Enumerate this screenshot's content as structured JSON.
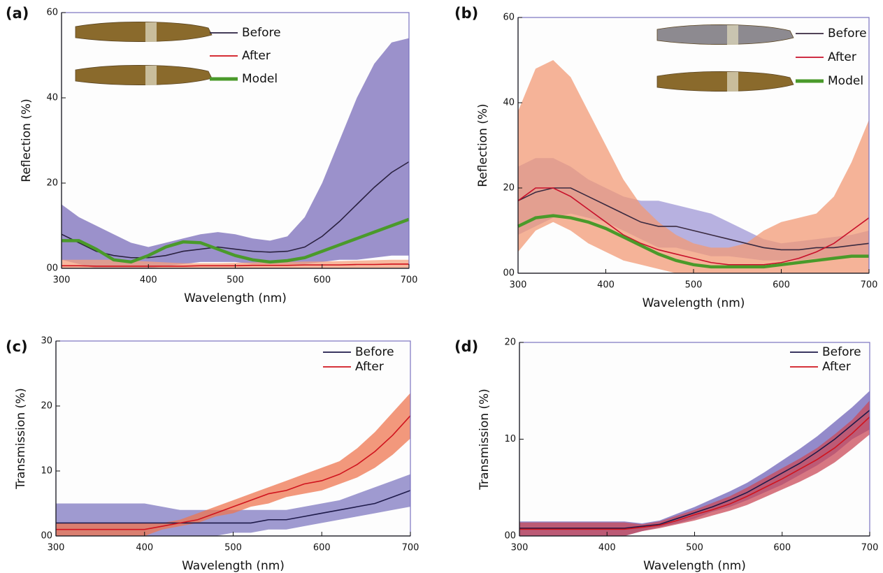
{
  "chart_data": [
    {
      "type": "line",
      "panel_label": "(a)",
      "y_label": "Reflection (%)",
      "x_label": "Wavelength (nm)",
      "x": [
        300,
        320,
        340,
        360,
        380,
        400,
        420,
        440,
        460,
        480,
        500,
        520,
        540,
        560,
        580,
        600,
        620,
        640,
        660,
        680,
        700
      ],
      "xlim": [
        300,
        700
      ],
      "xticks": [
        300,
        400,
        500,
        600,
        700
      ],
      "ylim": [
        0,
        60
      ],
      "yticks": [
        {
          "value": 0,
          "label": "00"
        },
        20,
        40,
        60
      ],
      "series": [
        {
          "name": "Before",
          "color": "#2a2140",
          "band_color": "#7a6cba",
          "values": [
            8,
            6,
            4,
            3,
            2.5,
            2.5,
            3,
            4,
            4.5,
            5,
            4.5,
            4,
            3.8,
            4,
            5,
            7.5,
            11,
            15,
            19,
            22.5,
            25
          ],
          "upper": [
            15,
            12,
            10,
            8,
            6,
            5,
            6,
            7,
            8,
            8.5,
            8,
            7,
            6.5,
            7.5,
            12,
            20,
            30,
            40,
            48,
            53,
            54
          ],
          "lower": [
            2,
            1,
            0,
            0,
            0,
            0,
            0.5,
            1,
            1.5,
            1.5,
            1.5,
            1,
            1,
            1,
            1,
            1.5,
            2,
            2,
            2.5,
            3,
            3
          ]
        },
        {
          "name": "After",
          "color": "#d0101a",
          "band_color": "#f4a07e",
          "values": [
            0.6,
            0.6,
            0.5,
            0.5,
            0.5,
            0.5,
            0.5,
            0.5,
            0.6,
            0.6,
            0.6,
            0.7,
            0.7,
            0.7,
            0.8,
            0.8,
            0.8,
            0.9,
            0.9,
            1,
            1
          ],
          "upper": [
            2,
            2,
            2,
            2,
            1.8,
            1.6,
            1.4,
            1.2,
            1.2,
            1.2,
            1.3,
            1.4,
            1.5,
            1.5,
            1.6,
            1.6,
            1.7,
            1.8,
            1.9,
            2,
            2
          ],
          "lower": [
            0,
            0,
            0,
            0,
            0,
            0,
            0,
            0,
            0,
            0,
            0,
            0,
            0,
            0,
            0,
            0,
            0,
            0,
            0,
            0,
            0
          ]
        },
        {
          "name": "Model",
          "color": "#4a9a2a",
          "values": [
            6.5,
            6.5,
            4.5,
            2,
            1.5,
            3,
            5,
            6.2,
            6,
            4.5,
            3,
            2,
            1.5,
            1.8,
            2.5,
            4,
            5.5,
            7,
            8.5,
            10,
            11.5
          ]
        }
      ]
    },
    {
      "type": "line",
      "panel_label": "(b)",
      "y_label": "Reflection (%)",
      "x_label": "Wavelength (nm)",
      "x": [
        300,
        320,
        340,
        360,
        380,
        400,
        420,
        440,
        460,
        480,
        500,
        520,
        540,
        560,
        580,
        600,
        620,
        640,
        660,
        680,
        700
      ],
      "xlim": [
        300,
        700
      ],
      "xticks": [
        300,
        400,
        500,
        600,
        700
      ],
      "ylim": [
        0,
        60
      ],
      "yticks": [
        {
          "value": 0,
          "label": "00"
        },
        20,
        40,
        60
      ],
      "series": [
        {
          "name": "Before",
          "color": "#3a2a40",
          "band_color": "#9f97d6",
          "values": [
            17,
            19,
            20,
            20,
            18,
            16,
            14,
            12,
            11,
            11,
            10,
            9,
            8,
            7,
            6,
            5.5,
            5.5,
            6,
            6,
            6.5,
            7
          ],
          "upper": [
            25,
            27,
            27,
            25,
            22,
            20,
            18,
            17,
            17,
            16,
            15,
            14,
            12,
            10,
            8,
            7,
            7.5,
            8,
            8.5,
            9,
            10
          ],
          "lower": [
            9,
            11,
            13,
            14,
            13,
            12,
            10,
            8,
            6,
            6,
            5,
            4,
            4,
            3.5,
            3,
            3,
            3,
            3.5,
            3.5,
            4,
            4
          ]
        },
        {
          "name": "After",
          "color": "#c8102a",
          "band_color": "#f29a75",
          "values": [
            17,
            20,
            20,
            18,
            15,
            12,
            9,
            7,
            5.5,
            4.5,
            3.5,
            2.5,
            2,
            2,
            2,
            2.5,
            3.5,
            5,
            7,
            10,
            13
          ],
          "upper": [
            38,
            48,
            50,
            46,
            38,
            30,
            22,
            16,
            12,
            9,
            7,
            6,
            6,
            7,
            10,
            12,
            13,
            14,
            18,
            26,
            36
          ],
          "lower": [
            5,
            10,
            12,
            10,
            7,
            5,
            3,
            2,
            1,
            0,
            0,
            0,
            0,
            0,
            0,
            0,
            0,
            0,
            0,
            0,
            0
          ]
        },
        {
          "name": "Model",
          "color": "#4a9a2a",
          "values": [
            11,
            13,
            13.5,
            13,
            12,
            10.5,
            8.5,
            6.5,
            4.5,
            3,
            2,
            1.5,
            1.5,
            1.5,
            1.5,
            2,
            2.5,
            3,
            3.5,
            4,
            4
          ]
        }
      ]
    },
    {
      "type": "line",
      "panel_label": "(c)",
      "y_label": "Transmission (%)",
      "x_label": "Wavelength (nm)",
      "x": [
        300,
        320,
        340,
        360,
        380,
        400,
        420,
        440,
        460,
        480,
        500,
        520,
        540,
        560,
        580,
        600,
        620,
        640,
        660,
        680,
        700
      ],
      "xlim": [
        300,
        700
      ],
      "xticks": [
        300,
        400,
        500,
        600,
        700
      ],
      "ylim": [
        0,
        30
      ],
      "yticks": [
        {
          "value": 0,
          "label": "00"
        },
        10,
        20,
        30
      ],
      "series": [
        {
          "name": "Before",
          "color": "#1e1a4a",
          "band_color": "#7f78c0",
          "values": [
            2,
            2,
            2,
            2,
            2,
            2,
            2,
            2,
            2,
            2,
            2,
            2,
            2.5,
            2.5,
            3,
            3.5,
            4,
            4.5,
            5,
            6,
            7
          ],
          "upper": [
            5,
            5,
            5,
            5,
            5,
            5,
            4.5,
            4,
            4,
            4,
            4,
            4,
            4,
            4,
            4.5,
            5,
            5.5,
            6.5,
            7.5,
            8.5,
            9.5
          ],
          "lower": [
            0,
            0,
            0,
            0,
            0,
            0,
            0,
            0,
            0,
            0,
            0.5,
            0.5,
            1,
            1,
            1.5,
            2,
            2.5,
            3,
            3.5,
            4,
            4.5
          ]
        },
        {
          "name": "After",
          "color": "#d0141e",
          "band_color": "#ee7650",
          "values": [
            1,
            1,
            1,
            1,
            1,
            1,
            1.5,
            2,
            2.5,
            3.5,
            4.5,
            5.5,
            6.5,
            7,
            8,
            8.5,
            9.5,
            11,
            13,
            15.5,
            18.5
          ],
          "upper": [
            2,
            2,
            2,
            2,
            2,
            2,
            2,
            2.5,
            3.5,
            4.5,
            5.5,
            6.5,
            7.5,
            8.5,
            9.5,
            10.5,
            11.5,
            13.5,
            16,
            19,
            22
          ],
          "lower": [
            0,
            0,
            0,
            0,
            0,
            0,
            1,
            1.5,
            2,
            3,
            3.5,
            4.5,
            5,
            6,
            6.5,
            7,
            8,
            9,
            10.5,
            12.5,
            15
          ]
        }
      ]
    },
    {
      "type": "line",
      "panel_label": "(d)",
      "y_label": "Transmission (%)",
      "x_label": "Wavelength (nm)",
      "x": [
        300,
        320,
        340,
        360,
        380,
        400,
        420,
        440,
        460,
        480,
        500,
        520,
        540,
        560,
        580,
        600,
        620,
        640,
        660,
        680,
        700
      ],
      "xlim": [
        300,
        700
      ],
      "xticks": [
        300,
        400,
        500,
        600,
        700
      ],
      "ylim": [
        0,
        20
      ],
      "yticks": [
        {
          "value": 0,
          "label": "00"
        },
        10,
        20
      ],
      "series": [
        {
          "name": "Before",
          "color": "#1e1a4a",
          "band_color": "#6f63b8",
          "values": [
            0.8,
            0.8,
            0.8,
            0.8,
            0.8,
            0.8,
            0.8,
            1,
            1.2,
            1.8,
            2.4,
            3,
            3.7,
            4.5,
            5.5,
            6.5,
            7.5,
            8.7,
            10,
            11.5,
            13
          ],
          "upper": [
            1.5,
            1.5,
            1.5,
            1.5,
            1.5,
            1.5,
            1.5,
            1.3,
            1.6,
            2.3,
            3,
            3.8,
            4.6,
            5.5,
            6.6,
            7.8,
            9,
            10.3,
            11.8,
            13.3,
            15
          ],
          "lower": [
            0,
            0,
            0,
            0,
            0,
            0,
            0,
            0.5,
            0.9,
            1.3,
            1.8,
            2.5,
            3,
            3.7,
            4.5,
            5.3,
            6.3,
            7.3,
            8.5,
            10,
            11
          ]
        },
        {
          "name": "After",
          "color": "#d0141e",
          "band_color": "#c94a58",
          "values": [
            0.7,
            0.7,
            0.7,
            0.7,
            0.7,
            0.7,
            0.7,
            0.9,
            1.1,
            1.6,
            2.2,
            2.7,
            3.3,
            4.1,
            5,
            5.9,
            6.9,
            7.9,
            9.1,
            10.6,
            12.3
          ],
          "upper": [
            1.4,
            1.4,
            1.4,
            1.4,
            1.4,
            1.4,
            1.4,
            1.2,
            1.5,
            2.1,
            2.7,
            3.4,
            4.1,
            5,
            6,
            7,
            8,
            9.1,
            10.5,
            12,
            14
          ],
          "lower": [
            0,
            0,
            0,
            0,
            0,
            0,
            0,
            0.5,
            0.8,
            1.2,
            1.6,
            2.1,
            2.6,
            3.2,
            4,
            4.8,
            5.6,
            6.5,
            7.6,
            9,
            10.5
          ]
        }
      ]
    }
  ]
}
